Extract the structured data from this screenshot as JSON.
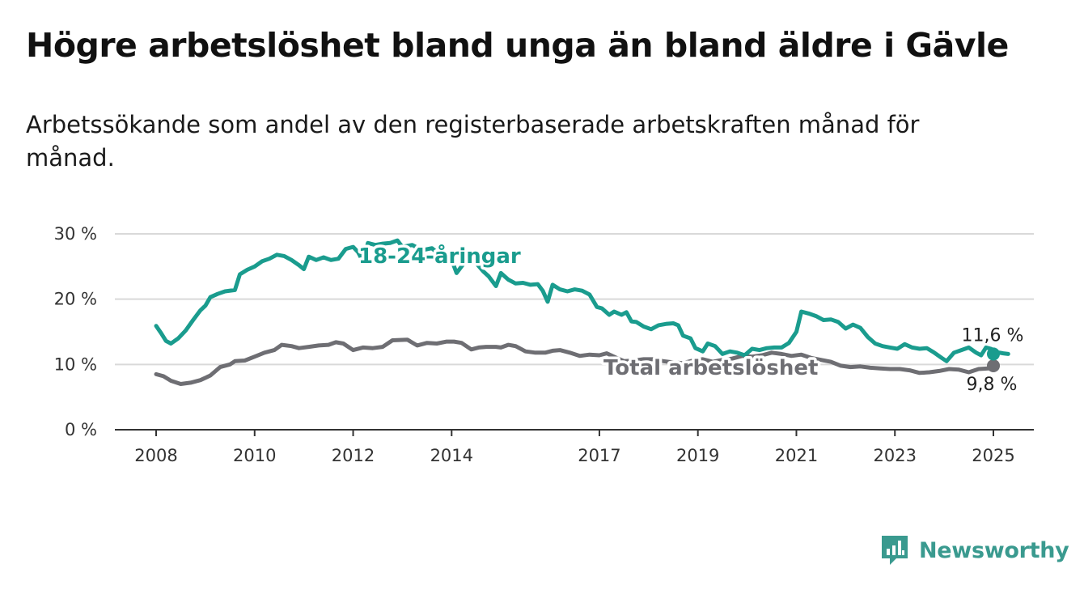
{
  "title": "Högre arbetslöshet bland unga än bland äldre i Gävle",
  "subtitle": "Arbetssökande som andel av den registerbaserade arbetskraften månad för månad.",
  "brand": {
    "name": "Newsworthy",
    "color": "#3a9a8f",
    "icon": "bar-chart-logo-icon"
  },
  "chart_data": {
    "type": "line",
    "y_ticks": [
      0,
      10,
      20,
      30
    ],
    "y_tick_labels": [
      "0 %",
      "10 %",
      "20 %",
      "30 %"
    ],
    "ylim": [
      0,
      30
    ],
    "x_ticks": [
      2008,
      2010,
      2012,
      2014,
      2017,
      2019,
      2021,
      2023,
      2025
    ],
    "x_tick_labels": [
      "2008",
      "2010",
      "2012",
      "2014",
      "2017",
      "2019",
      "2021",
      "2023",
      "2025"
    ],
    "xlim": [
      2007.2,
      2025.8
    ],
    "grid": true,
    "series": [
      {
        "name": "Total arbetslöshet",
        "label": "Total arbetslöshet",
        "color": "#6e6e73",
        "end_value": 9.8,
        "end_label": "9,8 %",
        "points": [
          [
            2008.0,
            8.5
          ],
          [
            2008.15,
            8.2
          ],
          [
            2008.3,
            7.5
          ],
          [
            2008.5,
            7.0
          ],
          [
            2008.7,
            7.2
          ],
          [
            2008.9,
            7.6
          ],
          [
            2009.1,
            8.3
          ],
          [
            2009.3,
            9.6
          ],
          [
            2009.5,
            10.0
          ],
          [
            2009.6,
            10.5
          ],
          [
            2009.8,
            10.6
          ],
          [
            2010.0,
            11.2
          ],
          [
            2010.2,
            11.8
          ],
          [
            2010.4,
            12.2
          ],
          [
            2010.55,
            13.0
          ],
          [
            2010.75,
            12.8
          ],
          [
            2010.9,
            12.5
          ],
          [
            2011.1,
            12.7
          ],
          [
            2011.3,
            12.9
          ],
          [
            2011.5,
            13.0
          ],
          [
            2011.65,
            13.4
          ],
          [
            2011.8,
            13.2
          ],
          [
            2012.0,
            12.2
          ],
          [
            2012.2,
            12.6
          ],
          [
            2012.4,
            12.5
          ],
          [
            2012.6,
            12.7
          ],
          [
            2012.8,
            13.7
          ],
          [
            2013.1,
            13.8
          ],
          [
            2013.3,
            12.9
          ],
          [
            2013.5,
            13.3
          ],
          [
            2013.7,
            13.2
          ],
          [
            2013.9,
            13.5
          ],
          [
            2014.05,
            13.5
          ],
          [
            2014.2,
            13.3
          ],
          [
            2014.4,
            12.3
          ],
          [
            2014.55,
            12.6
          ],
          [
            2014.7,
            12.7
          ],
          [
            2014.9,
            12.7
          ],
          [
            2015.0,
            12.6
          ],
          [
            2015.15,
            13.0
          ],
          [
            2015.3,
            12.8
          ],
          [
            2015.5,
            12.0
          ],
          [
            2015.7,
            11.8
          ],
          [
            2015.9,
            11.8
          ],
          [
            2016.05,
            12.1
          ],
          [
            2016.2,
            12.2
          ],
          [
            2016.4,
            11.8
          ],
          [
            2016.6,
            11.3
          ],
          [
            2016.8,
            11.5
          ],
          [
            2017.0,
            11.4
          ],
          [
            2017.15,
            11.7
          ],
          [
            2017.35,
            11.0
          ],
          [
            2017.5,
            10.5
          ],
          [
            2017.7,
            10.6
          ],
          [
            2017.9,
            10.8
          ],
          [
            2018.1,
            10.8
          ],
          [
            2018.3,
            10.5
          ],
          [
            2018.5,
            10.3
          ],
          [
            2018.7,
            10.2
          ],
          [
            2018.9,
            10.6
          ],
          [
            2019.1,
            10.8
          ],
          [
            2019.3,
            10.4
          ],
          [
            2019.5,
            10.7
          ],
          [
            2019.7,
            10.9
          ],
          [
            2019.9,
            11.3
          ],
          [
            2020.1,
            11.2
          ],
          [
            2020.3,
            11.4
          ],
          [
            2020.5,
            11.8
          ],
          [
            2020.7,
            11.6
          ],
          [
            2020.9,
            11.3
          ],
          [
            2021.1,
            11.5
          ],
          [
            2021.3,
            11.0
          ],
          [
            2021.5,
            10.7
          ],
          [
            2021.7,
            10.4
          ],
          [
            2021.9,
            9.8
          ],
          [
            2022.1,
            9.6
          ],
          [
            2022.3,
            9.7
          ],
          [
            2022.5,
            9.5
          ],
          [
            2022.7,
            9.4
          ],
          [
            2022.9,
            9.3
          ],
          [
            2023.1,
            9.3
          ],
          [
            2023.3,
            9.1
          ],
          [
            2023.5,
            8.7
          ],
          [
            2023.7,
            8.8
          ],
          [
            2023.9,
            9.0
          ],
          [
            2024.1,
            9.3
          ],
          [
            2024.3,
            9.2
          ],
          [
            2024.5,
            8.8
          ],
          [
            2024.7,
            9.3
          ],
          [
            2024.9,
            9.4
          ],
          [
            2025.0,
            9.8
          ]
        ]
      },
      {
        "name": "18-24-åringar",
        "label": "18-24-åringar",
        "color": "#1a9c8e",
        "end_value": 11.6,
        "end_label": "11,6 %",
        "points": [
          [
            2008.0,
            15.9
          ],
          [
            2008.1,
            14.8
          ],
          [
            2008.2,
            13.6
          ],
          [
            2008.3,
            13.2
          ],
          [
            2008.45,
            14.0
          ],
          [
            2008.6,
            15.2
          ],
          [
            2008.75,
            16.8
          ],
          [
            2008.9,
            18.3
          ],
          [
            2009.0,
            19.0
          ],
          [
            2009.1,
            20.3
          ],
          [
            2009.25,
            20.8
          ],
          [
            2009.4,
            21.2
          ],
          [
            2009.6,
            21.4
          ],
          [
            2009.7,
            23.8
          ],
          [
            2009.85,
            24.5
          ],
          [
            2010.0,
            25.0
          ],
          [
            2010.15,
            25.8
          ],
          [
            2010.3,
            26.2
          ],
          [
            2010.45,
            26.8
          ],
          [
            2010.6,
            26.6
          ],
          [
            2010.75,
            26.0
          ],
          [
            2010.9,
            25.2
          ],
          [
            2011.0,
            24.6
          ],
          [
            2011.1,
            26.5
          ],
          [
            2011.25,
            26.0
          ],
          [
            2011.4,
            26.4
          ],
          [
            2011.55,
            26.0
          ],
          [
            2011.7,
            26.2
          ],
          [
            2011.85,
            27.7
          ],
          [
            2012.0,
            28.0
          ],
          [
            2012.1,
            27.2
          ],
          [
            2012.2,
            25.8
          ],
          [
            2012.3,
            28.6
          ],
          [
            2012.45,
            28.3
          ],
          [
            2012.6,
            28.5
          ],
          [
            2012.75,
            28.6
          ],
          [
            2012.9,
            29.0
          ],
          [
            2013.0,
            28.0
          ],
          [
            2013.2,
            28.3
          ],
          [
            2013.4,
            27.5
          ],
          [
            2013.6,
            27.8
          ],
          [
            2013.8,
            26.5
          ],
          [
            2013.95,
            27.0
          ],
          [
            2014.1,
            24.0
          ],
          [
            2014.3,
            26.0
          ],
          [
            2014.5,
            25.5
          ],
          [
            2014.65,
            24.2
          ],
          [
            2014.75,
            23.5
          ],
          [
            2014.9,
            22.0
          ],
          [
            2015.0,
            24.0
          ],
          [
            2015.15,
            23.0
          ],
          [
            2015.3,
            22.4
          ],
          [
            2015.45,
            22.5
          ],
          [
            2015.6,
            22.2
          ],
          [
            2015.75,
            22.3
          ],
          [
            2015.85,
            21.3
          ],
          [
            2015.95,
            19.6
          ],
          [
            2016.05,
            22.2
          ],
          [
            2016.2,
            21.5
          ],
          [
            2016.35,
            21.2
          ],
          [
            2016.5,
            21.5
          ],
          [
            2016.65,
            21.3
          ],
          [
            2016.8,
            20.7
          ],
          [
            2016.95,
            18.8
          ],
          [
            2017.05,
            18.6
          ],
          [
            2017.2,
            17.6
          ],
          [
            2017.3,
            18.1
          ],
          [
            2017.45,
            17.6
          ],
          [
            2017.55,
            18.0
          ],
          [
            2017.65,
            16.6
          ],
          [
            2017.75,
            16.5
          ],
          [
            2017.9,
            15.8
          ],
          [
            2018.05,
            15.4
          ],
          [
            2018.2,
            16.0
          ],
          [
            2018.35,
            16.2
          ],
          [
            2018.5,
            16.3
          ],
          [
            2018.6,
            16.0
          ],
          [
            2018.7,
            14.4
          ],
          [
            2018.85,
            14.0
          ],
          [
            2018.95,
            12.5
          ],
          [
            2019.1,
            12.0
          ],
          [
            2019.2,
            13.2
          ],
          [
            2019.35,
            12.8
          ],
          [
            2019.5,
            11.6
          ],
          [
            2019.65,
            12.0
          ],
          [
            2019.8,
            11.8
          ],
          [
            2019.95,
            11.4
          ],
          [
            2020.1,
            12.4
          ],
          [
            2020.25,
            12.2
          ],
          [
            2020.4,
            12.5
          ],
          [
            2020.55,
            12.6
          ],
          [
            2020.7,
            12.6
          ],
          [
            2020.85,
            13.3
          ],
          [
            2021.0,
            15.0
          ],
          [
            2021.1,
            18.1
          ],
          [
            2021.25,
            17.8
          ],
          [
            2021.4,
            17.4
          ],
          [
            2021.55,
            16.8
          ],
          [
            2021.7,
            16.9
          ],
          [
            2021.85,
            16.5
          ],
          [
            2022.0,
            15.5
          ],
          [
            2022.15,
            16.1
          ],
          [
            2022.3,
            15.6
          ],
          [
            2022.45,
            14.2
          ],
          [
            2022.6,
            13.2
          ],
          [
            2022.75,
            12.8
          ],
          [
            2022.9,
            12.6
          ],
          [
            2023.05,
            12.4
          ],
          [
            2023.2,
            13.1
          ],
          [
            2023.35,
            12.6
          ],
          [
            2023.5,
            12.4
          ],
          [
            2023.65,
            12.5
          ],
          [
            2023.8,
            11.8
          ],
          [
            2023.95,
            11.0
          ],
          [
            2024.05,
            10.5
          ],
          [
            2024.2,
            11.8
          ],
          [
            2024.35,
            12.2
          ],
          [
            2024.5,
            12.6
          ],
          [
            2024.65,
            11.8
          ],
          [
            2024.75,
            11.4
          ],
          [
            2024.85,
            12.6
          ],
          [
            2024.95,
            12.4
          ],
          [
            2025.05,
            11.9
          ],
          [
            2025.2,
            11.7
          ],
          [
            2025.3,
            11.6
          ]
        ]
      }
    ]
  }
}
